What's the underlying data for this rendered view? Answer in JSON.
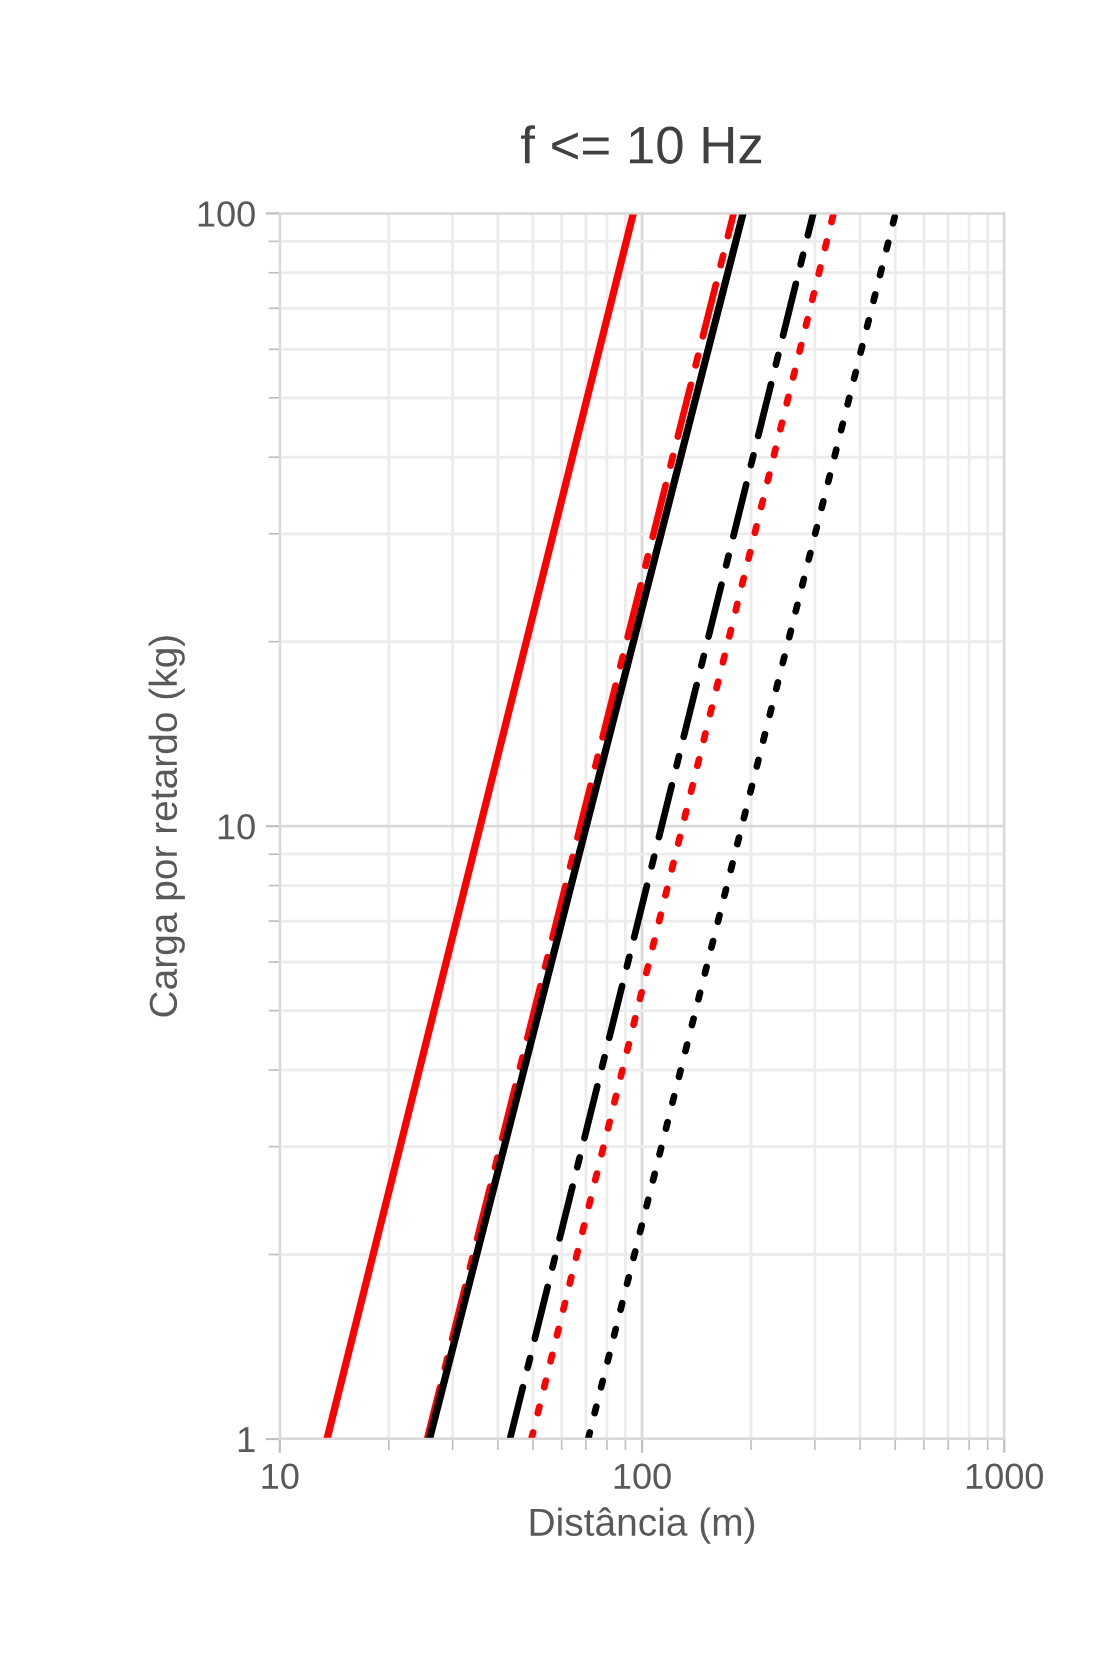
{
  "chart_data": {
    "type": "line",
    "title": "f <= 10 Hz",
    "xlabel": "Distância (m)",
    "ylabel": "Carga por retardo (kg)",
    "log": "xy",
    "xlim": [
      10,
      1000
    ],
    "xticks": [
      10,
      100,
      1000
    ],
    "ylim": [
      1,
      100
    ],
    "yticks": [
      1,
      10,
      100
    ],
    "grid": true,
    "legend": false,
    "marker": "none",
    "series": [
      {
        "color": "#ff0000",
        "line_style": "solid",
        "x": [
          13.5,
          94.6
        ],
        "values": [
          1,
          100
        ]
      },
      {
        "color": "#ff0000",
        "line_style": "dashdot",
        "x": [
          25.5,
          179
        ],
        "values": [
          1,
          100
        ]
      },
      {
        "color": "#000000",
        "line_style": "solid",
        "x": [
          25.9,
          190
        ],
        "values": [
          1,
          100
        ]
      },
      {
        "color": "#000000",
        "line_style": "dashdot",
        "x": [
          43.2,
          297
        ],
        "values": [
          1,
          100
        ]
      },
      {
        "color": "#ff0000",
        "line_style": "dotted",
        "x": [
          49.5,
          338
        ],
        "values": [
          1,
          100
        ]
      },
      {
        "color": "#000000",
        "line_style": "dotted",
        "x": [
          71,
          501
        ],
        "values": [
          1,
          100
        ]
      }
    ]
  }
}
